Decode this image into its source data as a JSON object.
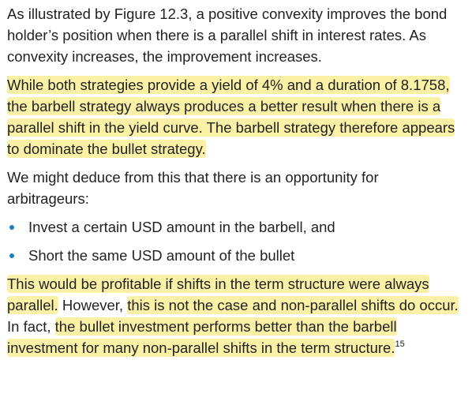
{
  "paragraph1": "As illustrated by Figure 12.3, a positive convexity improves the bond holder’s position when there is a parallel shift in interest rates. As convexity increases, the improvement increases.",
  "paragraph2": "While both strategies provide a yield of 4% and a duration of 8.1758, the barbell strategy always produces a better result when there is a parallel shift in the yield curve. The barbell strategy therefore appears to dominate the bullet strategy.",
  "paragraph3": "We might deduce from this that there is an opportunity for arbitrageurs:",
  "bullets": [
    "Invest a certain USD amount in the barbell, and",
    "Short the same USD amount of the bullet"
  ],
  "paragraph4": {
    "part1": "This would be profitable if shifts in the term structure were always parallel.",
    "part2": " However, ",
    "part3": "this is not the case and non-parallel shifts do occur.",
    "part4": " In fact, ",
    "part5": "the bullet investment performs better than the barbell investment for many non-parallel shifts in the term structure.",
    "footnote": "15"
  },
  "colors": {
    "highlight": "#fbf1a6",
    "bullet": "#1a7fbf",
    "text": "#222222"
  }
}
